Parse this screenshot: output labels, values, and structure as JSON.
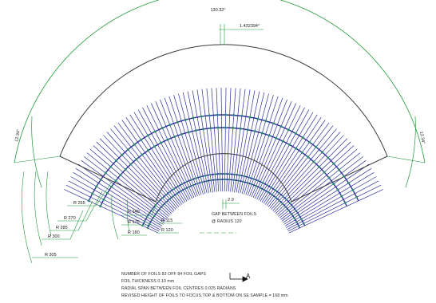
{
  "dimensions": {
    "arc_length": "130.32°",
    "foil_pitch_angle": "1.432394°",
    "left_angle": "12.34°",
    "right_angle": "12.34°",
    "gap_width": "2.9",
    "radii": [
      "R 115",
      "R 120",
      "R 140",
      "R 170",
      "R 180",
      "R 255",
      "R 270",
      "R 285",
      "R 300",
      "R 305"
    ]
  },
  "gap_note": [
    "GAP BETWEEN FOILS",
    "@ RADIUS 120"
  ],
  "notes": [
    "NUMBER OF FOILS 83 OFF 84 FOIL GAPS",
    "FOIL THICKNESS 0.10 mm",
    "RADIAL SPAN BETWEEN FOIL CENTRES 0.025 RADIANS",
    "REVISED HEIGHT OF FOILS TO FOCUS,TOP & BOTTOM ON SE SAMPLE = 168 mm"
  ],
  "view_label": "A",
  "colors": {
    "foil": "#2b2f9e",
    "outline": "#3a3a3a",
    "dimension": "#1f9a3a",
    "beads": "#2e8b6e"
  }
}
